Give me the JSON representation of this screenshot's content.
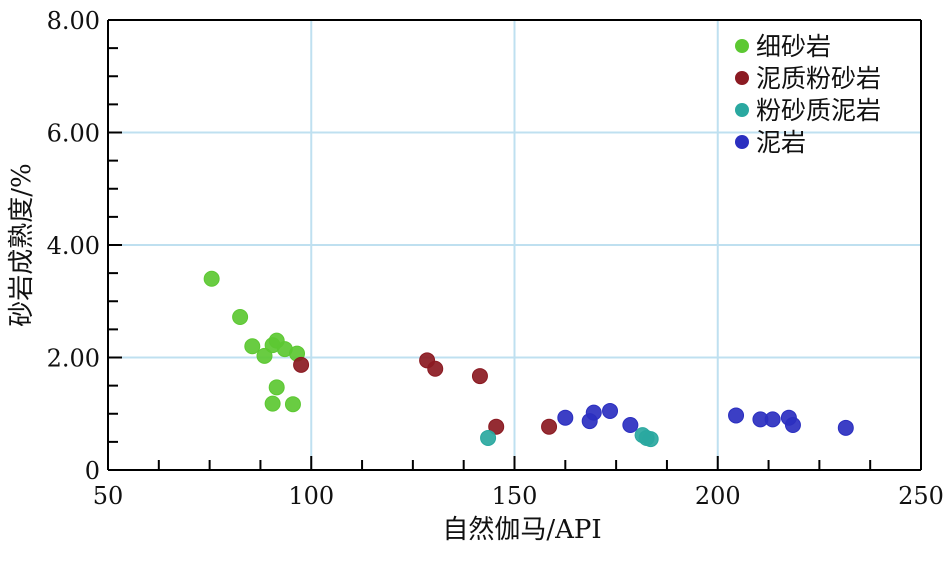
{
  "chart_data": {
    "type": "scatter",
    "title": "",
    "xlabel": "自然伽马/API",
    "ylabel": "砂岩成熟度/%",
    "xlim": [
      50,
      250
    ],
    "ylim": [
      0,
      8
    ],
    "xticks": [
      50,
      100,
      150,
      200,
      250
    ],
    "xtick_labels": [
      "50",
      "100",
      "150",
      "200",
      "250"
    ],
    "yticks": [
      0,
      2,
      4,
      6,
      8
    ],
    "ytick_labels": [
      "0",
      "2.00",
      "4.00",
      "6.00",
      "8.00"
    ],
    "grid": true,
    "legend_position": "top-right",
    "colors": {
      "grid": "#bfe0f0",
      "axis": "#000000"
    },
    "series": [
      {
        "name": "细砂岩",
        "color": "#5cc832",
        "points": [
          [
            75.5,
            3.4
          ],
          [
            82.5,
            2.72
          ],
          [
            85.5,
            2.2
          ],
          [
            88.5,
            2.03
          ],
          [
            90.5,
            2.22
          ],
          [
            91.5,
            2.3
          ],
          [
            93.5,
            2.15
          ],
          [
            96.5,
            2.07
          ],
          [
            91.5,
            1.47
          ],
          [
            90.5,
            1.18
          ],
          [
            95.5,
            1.17
          ]
        ]
      },
      {
        "name": "泥质粉砂岩",
        "color": "#8b1a22",
        "points": [
          [
            97.5,
            1.87
          ],
          [
            128.5,
            1.95
          ],
          [
            130.5,
            1.8
          ],
          [
            141.5,
            1.67
          ],
          [
            145.5,
            0.77
          ],
          [
            158.5,
            0.77
          ]
        ]
      },
      {
        "name": "粉砂质泥岩",
        "color": "#2aa8a0",
        "points": [
          [
            143.5,
            0.57
          ],
          [
            181.5,
            0.62
          ],
          [
            182.5,
            0.57
          ],
          [
            183.5,
            0.55
          ]
        ]
      },
      {
        "name": "泥岩",
        "color": "#2b2fc0",
        "points": [
          [
            162.5,
            0.93
          ],
          [
            168.5,
            0.87
          ],
          [
            169.5,
            1.02
          ],
          [
            173.5,
            1.05
          ],
          [
            178.5,
            0.8
          ],
          [
            204.5,
            0.97
          ],
          [
            210.5,
            0.9
          ],
          [
            213.5,
            0.9
          ],
          [
            217.5,
            0.93
          ],
          [
            218.5,
            0.8
          ],
          [
            231.5,
            0.75
          ]
        ]
      }
    ]
  }
}
